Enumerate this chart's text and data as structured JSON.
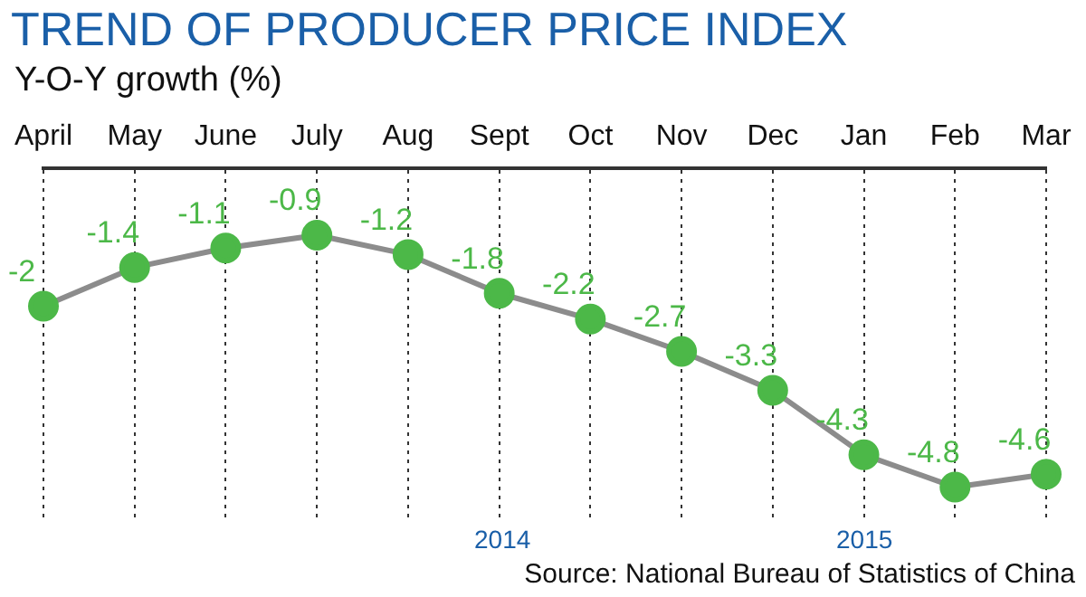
{
  "chart_data": {
    "type": "line",
    "title": "TREND OF PRODUCER PRICE INDEX",
    "ylabel": "Y-O-Y growth (%)",
    "categories": [
      "April",
      "May",
      "June",
      "July",
      "Aug",
      "Sept",
      "Oct",
      "Nov",
      "Dec",
      "Jan",
      "Feb",
      "Mar"
    ],
    "series": [
      {
        "color": "#8c8c8c",
        "values": [
          -2,
          -1.4,
          -1.1,
          -0.9,
          -1.2,
          -1.8,
          -2.2,
          -2.7,
          -3.3,
          -4.3,
          -4.8,
          -4.6
        ]
      }
    ],
    "marker": "circle",
    "data_labels": true,
    "grid": "x",
    "legend": false,
    "annotations": [
      "2014",
      "2015",
      "Source: National Bureau of Statistics of China"
    ]
  }
}
